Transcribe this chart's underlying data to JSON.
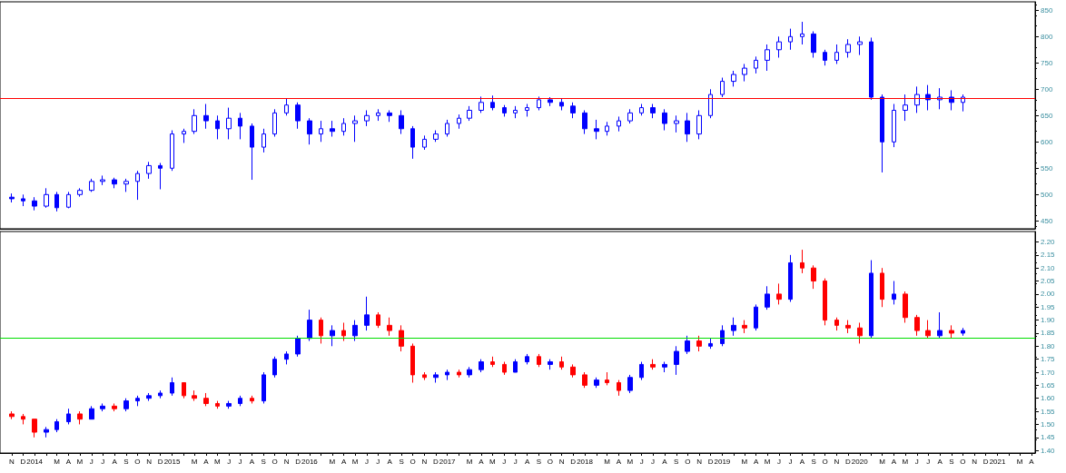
{
  "chart_data": [
    {
      "type": "candlestick",
      "color": "#0000ff",
      "xlim": [
        "2013-10-15",
        "2021-04-25"
      ],
      "ylim": [
        435,
        866
      ],
      "yticks": [
        450,
        500,
        550,
        600,
        650,
        700,
        750,
        800,
        850
      ],
      "tick_labels": "y",
      "ref_lines": [
        {
          "axis": "y",
          "value": 682,
          "color": "#ff0000"
        }
      ],
      "x": [
        "2013-11-15",
        "2013-12-15",
        "2014-01-15",
        "2014-02-15",
        "2014-03-15",
        "2014-04-15",
        "2014-05-15",
        "2014-06-15",
        "2014-07-15",
        "2014-08-15",
        "2014-09-15",
        "2014-10-15",
        "2014-11-15",
        "2014-12-15",
        "2015-01-15",
        "2015-02-15",
        "2015-03-15",
        "2015-04-15",
        "2015-05-15",
        "2015-06-15",
        "2015-07-15",
        "2015-08-15",
        "2015-09-15",
        "2015-10-15",
        "2015-11-15",
        "2015-12-15",
        "2016-01-15",
        "2016-02-15",
        "2016-03-15",
        "2016-04-15",
        "2016-05-15",
        "2016-06-15",
        "2016-07-15",
        "2016-08-15",
        "2016-09-15",
        "2016-10-15",
        "2016-11-15",
        "2016-12-15",
        "2017-01-15",
        "2017-02-15",
        "2017-03-15",
        "2017-04-15",
        "2017-05-15",
        "2017-06-15",
        "2017-07-15",
        "2017-08-15",
        "2017-09-15",
        "2017-10-15",
        "2017-11-15",
        "2017-12-15",
        "2018-01-15",
        "2018-02-15",
        "2018-03-15",
        "2018-04-15",
        "2018-05-15",
        "2018-06-15",
        "2018-07-15",
        "2018-08-15",
        "2018-09-15",
        "2018-10-15",
        "2018-11-15",
        "2018-12-15",
        "2019-01-15",
        "2019-02-15",
        "2019-03-15",
        "2019-04-15",
        "2019-05-15",
        "2019-06-15",
        "2019-07-15",
        "2019-08-15",
        "2019-09-15",
        "2019-10-15",
        "2019-11-15",
        "2019-12-15",
        "2020-01-15",
        "2020-02-15",
        "2020-03-15",
        "2020-04-15",
        "2020-05-15",
        "2020-06-15",
        "2020-07-15",
        "2020-08-15",
        "2020-09-15",
        "2020-10-15"
      ],
      "ohlc": [
        [
          495,
          502,
          485,
          492
        ],
        [
          492,
          500,
          478,
          488
        ],
        [
          488,
          495,
          470,
          478
        ],
        [
          478,
          512,
          475,
          500
        ],
        [
          500,
          505,
          468,
          475
        ],
        [
          476,
          505,
          474,
          500
        ],
        [
          500,
          512,
          496,
          508
        ],
        [
          508,
          530,
          505,
          525
        ],
        [
          525,
          536,
          518,
          528
        ],
        [
          528,
          532,
          512,
          520
        ],
        [
          520,
          530,
          505,
          525
        ],
        [
          525,
          545,
          490,
          540
        ],
        [
          540,
          562,
          530,
          555
        ],
        [
          555,
          560,
          510,
          550
        ],
        [
          550,
          622,
          545,
          615
        ],
        [
          615,
          625,
          598,
          620
        ],
        [
          620,
          662,
          615,
          650
        ],
        [
          650,
          672,
          625,
          640
        ],
        [
          640,
          650,
          605,
          625
        ],
        [
          625,
          665,
          605,
          645
        ],
        [
          645,
          655,
          605,
          630
        ],
        [
          630,
          635,
          528,
          590
        ],
        [
          590,
          625,
          580,
          615
        ],
        [
          615,
          662,
          610,
          655
        ],
        [
          655,
          683,
          650,
          670
        ],
        [
          670,
          675,
          625,
          640
        ],
        [
          640,
          645,
          595,
          615
        ],
        [
          615,
          640,
          600,
          625
        ],
        [
          625,
          640,
          610,
          620
        ],
        [
          620,
          645,
          612,
          635
        ],
        [
          635,
          650,
          600,
          640
        ],
        [
          640,
          660,
          630,
          650
        ],
        [
          650,
          662,
          640,
          655
        ],
        [
          655,
          660,
          638,
          650
        ],
        [
          650,
          660,
          615,
          625
        ],
        [
          625,
          630,
          568,
          590
        ],
        [
          590,
          612,
          585,
          605
        ],
        [
          605,
          622,
          600,
          615
        ],
        [
          615,
          642,
          610,
          635
        ],
        [
          635,
          652,
          625,
          645
        ],
        [
          645,
          668,
          640,
          660
        ],
        [
          660,
          686,
          655,
          675
        ],
        [
          675,
          688,
          660,
          665
        ],
        [
          665,
          670,
          648,
          655
        ],
        [
          655,
          668,
          645,
          660
        ],
        [
          660,
          672,
          648,
          665
        ],
        [
          665,
          686,
          660,
          680
        ],
        [
          680,
          685,
          668,
          675
        ],
        [
          675,
          682,
          660,
          668
        ],
        [
          668,
          675,
          645,
          655
        ],
        [
          655,
          660,
          615,
          625
        ],
        [
          625,
          642,
          605,
          620
        ],
        [
          620,
          638,
          612,
          630
        ],
        [
          630,
          648,
          620,
          640
        ],
        [
          640,
          662,
          635,
          655
        ],
        [
          655,
          672,
          650,
          665
        ],
        [
          665,
          672,
          645,
          655
        ],
        [
          655,
          662,
          622,
          635
        ],
        [
          635,
          650,
          618,
          640
        ],
        [
          640,
          655,
          600,
          615
        ],
        [
          615,
          660,
          605,
          650
        ],
        [
          650,
          700,
          645,
          690
        ],
        [
          690,
          722,
          685,
          715
        ],
        [
          715,
          735,
          705,
          728
        ],
        [
          728,
          748,
          715,
          740
        ],
        [
          740,
          762,
          730,
          755
        ],
        [
          755,
          785,
          735,
          775
        ],
        [
          775,
          800,
          760,
          790
        ],
        [
          790,
          815,
          775,
          800
        ],
        [
          800,
          828,
          785,
          805
        ],
        [
          805,
          810,
          760,
          770
        ],
        [
          770,
          775,
          745,
          755
        ],
        [
          755,
          785,
          748,
          770
        ],
        [
          770,
          795,
          760,
          785
        ],
        [
          785,
          800,
          765,
          790
        ],
        [
          790,
          798,
          680,
          685
        ],
        [
          685,
          690,
          542,
          600
        ],
        [
          600,
          672,
          590,
          660
        ],
        [
          660,
          690,
          640,
          670
        ],
        [
          670,
          705,
          655,
          690
        ],
        [
          690,
          708,
          660,
          680
        ],
        [
          680,
          702,
          662,
          685
        ],
        [
          685,
          698,
          660,
          675
        ],
        [
          675,
          690,
          658,
          685
        ]
      ]
    },
    {
      "type": "candlestick",
      "xlim": [
        "2013-10-15",
        "2021-04-25"
      ],
      "ylim": [
        1.39,
        2.24
      ],
      "yticks": [
        {
          "value": 1.4,
          "label": "1.40"
        },
        1.45,
        {
          "value": 1.5,
          "label": "1.50"
        },
        1.55,
        {
          "value": 1.6,
          "label": "1.60"
        },
        1.65,
        {
          "value": 1.7,
          "label": "1.70"
        },
        1.75,
        {
          "value": 1.8,
          "label": "1.80"
        },
        1.85,
        {
          "value": 1.9,
          "label": "1.90"
        },
        1.95,
        {
          "value": 2.0,
          "label": "2.00"
        },
        2.05,
        {
          "value": 2.1,
          "label": "2.10"
        },
        2.15,
        {
          "value": 2.2,
          "label": "2.20"
        }
      ],
      "xticks": [
        {
          "value": "2013-11-15",
          "label": "N"
        },
        {
          "value": "2013-12-15",
          "label": "D"
        },
        {
          "value": "2014-01-15",
          "label": "2014"
        },
        {
          "value": "2014-02-15",
          "label": null
        },
        {
          "value": "2014-03-15",
          "label": "M"
        },
        {
          "value": "2014-04-15",
          "label": "A"
        },
        {
          "value": "2014-05-15",
          "label": "M"
        },
        {
          "value": "2014-06-15",
          "label": "J"
        },
        {
          "value": "2014-07-15",
          "label": "J"
        },
        {
          "value": "2014-08-15",
          "label": "A"
        },
        {
          "value": "2014-09-15",
          "label": "S"
        },
        {
          "value": "2014-10-15",
          "label": "O"
        },
        {
          "value": "2014-11-15",
          "label": "N"
        },
        {
          "value": "2014-12-15",
          "label": "D"
        },
        {
          "value": "2015-01-15",
          "label": "2015"
        },
        {
          "value": "2015-02-15",
          "label": null
        },
        {
          "value": "2015-03-15",
          "label": "M"
        },
        {
          "value": "2015-04-15",
          "label": "A"
        },
        {
          "value": "2015-05-15",
          "label": "M"
        },
        {
          "value": "2015-06-15",
          "label": "J"
        },
        {
          "value": "2015-07-15",
          "label": "J"
        },
        {
          "value": "2015-08-15",
          "label": "A"
        },
        {
          "value": "2015-09-15",
          "label": "S"
        },
        {
          "value": "2015-10-15",
          "label": "O"
        },
        {
          "value": "2015-11-15",
          "label": "N"
        },
        {
          "value": "2015-12-15",
          "label": "D"
        },
        {
          "value": "2016-01-15",
          "label": "2016"
        },
        {
          "value": "2016-02-15",
          "label": null
        },
        {
          "value": "2016-03-15",
          "label": "M"
        },
        {
          "value": "2016-04-15",
          "label": "A"
        },
        {
          "value": "2016-05-15",
          "label": "M"
        },
        {
          "value": "2016-06-15",
          "label": "J"
        },
        {
          "value": "2016-07-15",
          "label": "J"
        },
        {
          "value": "2016-08-15",
          "label": "A"
        },
        {
          "value": "2016-09-15",
          "label": "S"
        },
        {
          "value": "2016-10-15",
          "label": "O"
        },
        {
          "value": "2016-11-15",
          "label": "N"
        },
        {
          "value": "2016-12-15",
          "label": "D"
        },
        {
          "value": "2017-01-15",
          "label": "2017"
        },
        {
          "value": "2017-02-15",
          "label": null
        },
        {
          "value": "2017-03-15",
          "label": "M"
        },
        {
          "value": "2017-04-15",
          "label": "A"
        },
        {
          "value": "2017-05-15",
          "label": "M"
        },
        {
          "value": "2017-06-15",
          "label": "J"
        },
        {
          "value": "2017-07-15",
          "label": "J"
        },
        {
          "value": "2017-08-15",
          "label": "A"
        },
        {
          "value": "2017-09-15",
          "label": "S"
        },
        {
          "value": "2017-10-15",
          "label": "O"
        },
        {
          "value": "2017-11-15",
          "label": "N"
        },
        {
          "value": "2017-12-15",
          "label": "D"
        },
        {
          "value": "2018-01-15",
          "label": "2018"
        },
        {
          "value": "2018-02-15",
          "label": null
        },
        {
          "value": "2018-03-15",
          "label": "M"
        },
        {
          "value": "2018-04-15",
          "label": "A"
        },
        {
          "value": "2018-05-15",
          "label": "M"
        },
        {
          "value": "2018-06-15",
          "label": "J"
        },
        {
          "value": "2018-07-15",
          "label": "J"
        },
        {
          "value": "2018-08-15",
          "label": "A"
        },
        {
          "value": "2018-09-15",
          "label": "S"
        },
        {
          "value": "2018-10-15",
          "label": "O"
        },
        {
          "value": "2018-11-15",
          "label": "N"
        },
        {
          "value": "2018-12-15",
          "label": "D"
        },
        {
          "value": "2019-01-15",
          "label": "2019"
        },
        {
          "value": "2019-02-15",
          "label": null
        },
        {
          "value": "2019-03-15",
          "label": "M"
        },
        {
          "value": "2019-04-15",
          "label": "A"
        },
        {
          "value": "2019-05-15",
          "label": "M"
        },
        {
          "value": "2019-06-15",
          "label": "J"
        },
        {
          "value": "2019-07-15",
          "label": "J"
        },
        {
          "value": "2019-08-15",
          "label": "A"
        },
        {
          "value": "2019-09-15",
          "label": "S"
        },
        {
          "value": "2019-10-15",
          "label": "O"
        },
        {
          "value": "2019-11-15",
          "label": "N"
        },
        {
          "value": "2019-12-15",
          "label": "D"
        },
        {
          "value": "2020-01-15",
          "label": "2020"
        },
        {
          "value": "2020-02-15",
          "label": null
        },
        {
          "value": "2020-03-15",
          "label": "M"
        },
        {
          "value": "2020-04-15",
          "label": "A"
        },
        {
          "value": "2020-05-15",
          "label": "M"
        },
        {
          "value": "2020-06-15",
          "label": "J"
        },
        {
          "value": "2020-07-15",
          "label": "J"
        },
        {
          "value": "2020-08-15",
          "label": "A"
        },
        {
          "value": "2020-09-15",
          "label": "S"
        },
        {
          "value": "2020-10-15",
          "label": "O"
        },
        {
          "value": "2020-11-15",
          "label": "N"
        },
        {
          "value": "2020-12-15",
          "label": "D"
        },
        {
          "value": "2021-01-15",
          "label": "2021"
        },
        {
          "value": "2021-02-15",
          "label": null
        },
        {
          "value": "2021-03-15",
          "label": "M"
        },
        {
          "value": "2021-04-15",
          "label": "A"
        }
      ],
      "ref_lines": [
        {
          "axis": "y",
          "value": 1.83,
          "color": "#00dd00"
        }
      ],
      "x": [
        "2013-11-15",
        "2013-12-15",
        "2014-01-15",
        "2014-02-15",
        "2014-03-15",
        "2014-04-15",
        "2014-05-15",
        "2014-06-15",
        "2014-07-15",
        "2014-08-15",
        "2014-09-15",
        "2014-10-15",
        "2014-11-15",
        "2014-12-15",
        "2015-01-15",
        "2015-02-15",
        "2015-03-15",
        "2015-04-15",
        "2015-05-15",
        "2015-06-15",
        "2015-07-15",
        "2015-08-15",
        "2015-09-15",
        "2015-10-15",
        "2015-11-15",
        "2015-12-15",
        "2016-01-15",
        "2016-02-15",
        "2016-03-15",
        "2016-04-15",
        "2016-05-15",
        "2016-06-15",
        "2016-07-15",
        "2016-08-15",
        "2016-09-15",
        "2016-10-15",
        "2016-11-15",
        "2016-12-15",
        "2017-01-15",
        "2017-02-15",
        "2017-03-15",
        "2017-04-15",
        "2017-05-15",
        "2017-06-15",
        "2017-07-15",
        "2017-08-15",
        "2017-09-15",
        "2017-10-15",
        "2017-11-15",
        "2017-12-15",
        "2018-01-15",
        "2018-02-15",
        "2018-03-15",
        "2018-04-15",
        "2018-05-15",
        "2018-06-15",
        "2018-07-15",
        "2018-08-15",
        "2018-09-15",
        "2018-10-15",
        "2018-11-15",
        "2018-12-15",
        "2019-01-15",
        "2019-02-15",
        "2019-03-15",
        "2019-04-15",
        "2019-05-15",
        "2019-06-15",
        "2019-07-15",
        "2019-08-15",
        "2019-09-15",
        "2019-10-15",
        "2019-11-15",
        "2019-12-15",
        "2020-01-15",
        "2020-02-15",
        "2020-03-15",
        "2020-04-15",
        "2020-05-15",
        "2020-06-15",
        "2020-07-15",
        "2020-08-15",
        "2020-09-15",
        "2020-10-15"
      ],
      "ohlc": [
        [
          1.54,
          1.55,
          1.52,
          1.53
        ],
        [
          1.53,
          1.54,
          1.5,
          1.52
        ],
        [
          1.52,
          1.52,
          1.45,
          1.47
        ],
        [
          1.47,
          1.49,
          1.45,
          1.48
        ],
        [
          1.48,
          1.52,
          1.47,
          1.51
        ],
        [
          1.51,
          1.56,
          1.5,
          1.54
        ],
        [
          1.54,
          1.55,
          1.5,
          1.52
        ],
        [
          1.52,
          1.57,
          1.52,
          1.56
        ],
        [
          1.56,
          1.58,
          1.55,
          1.57
        ],
        [
          1.57,
          1.58,
          1.55,
          1.56
        ],
        [
          1.56,
          1.6,
          1.55,
          1.59
        ],
        [
          1.59,
          1.61,
          1.57,
          1.6
        ],
        [
          1.6,
          1.62,
          1.59,
          1.61
        ],
        [
          1.61,
          1.63,
          1.6,
          1.62
        ],
        [
          1.62,
          1.68,
          1.61,
          1.66
        ],
        [
          1.66,
          1.66,
          1.6,
          1.61
        ],
        [
          1.61,
          1.63,
          1.59,
          1.6
        ],
        [
          1.6,
          1.62,
          1.57,
          1.58
        ],
        [
          1.58,
          1.59,
          1.56,
          1.57
        ],
        [
          1.57,
          1.59,
          1.56,
          1.58
        ],
        [
          1.58,
          1.61,
          1.57,
          1.6
        ],
        [
          1.6,
          1.61,
          1.58,
          1.59
        ],
        [
          1.59,
          1.7,
          1.58,
          1.69
        ],
        [
          1.69,
          1.76,
          1.68,
          1.75
        ],
        [
          1.75,
          1.78,
          1.73,
          1.77
        ],
        [
          1.77,
          1.84,
          1.76,
          1.83
        ],
        [
          1.83,
          1.94,
          1.82,
          1.9
        ],
        [
          1.9,
          1.91,
          1.81,
          1.84
        ],
        [
          1.84,
          1.88,
          1.8,
          1.86
        ],
        [
          1.86,
          1.89,
          1.82,
          1.84
        ],
        [
          1.84,
          1.9,
          1.82,
          1.88
        ],
        [
          1.88,
          1.99,
          1.86,
          1.92
        ],
        [
          1.92,
          1.93,
          1.87,
          1.88
        ],
        [
          1.88,
          1.91,
          1.84,
          1.86
        ],
        [
          1.86,
          1.88,
          1.78,
          1.8
        ],
        [
          1.8,
          1.81,
          1.66,
          1.69
        ],
        [
          1.69,
          1.7,
          1.67,
          1.68
        ],
        [
          1.68,
          1.7,
          1.66,
          1.69
        ],
        [
          1.69,
          1.71,
          1.67,
          1.7
        ],
        [
          1.7,
          1.71,
          1.68,
          1.69
        ],
        [
          1.69,
          1.72,
          1.68,
          1.71
        ],
        [
          1.71,
          1.75,
          1.7,
          1.74
        ],
        [
          1.74,
          1.76,
          1.72,
          1.73
        ],
        [
          1.73,
          1.74,
          1.69,
          1.7
        ],
        [
          1.7,
          1.75,
          1.7,
          1.74
        ],
        [
          1.74,
          1.77,
          1.73,
          1.76
        ],
        [
          1.76,
          1.77,
          1.72,
          1.73
        ],
        [
          1.73,
          1.75,
          1.71,
          1.74
        ],
        [
          1.74,
          1.76,
          1.71,
          1.72
        ],
        [
          1.72,
          1.73,
          1.68,
          1.69
        ],
        [
          1.69,
          1.7,
          1.64,
          1.65
        ],
        [
          1.65,
          1.68,
          1.64,
          1.67
        ],
        [
          1.67,
          1.7,
          1.65,
          1.66
        ],
        [
          1.66,
          1.67,
          1.61,
          1.63
        ],
        [
          1.63,
          1.69,
          1.62,
          1.68
        ],
        [
          1.68,
          1.74,
          1.67,
          1.73
        ],
        [
          1.73,
          1.75,
          1.71,
          1.72
        ],
        [
          1.72,
          1.74,
          1.7,
          1.73
        ],
        [
          1.73,
          1.8,
          1.69,
          1.78
        ],
        [
          1.78,
          1.84,
          1.77,
          1.82
        ],
        [
          1.82,
          1.84,
          1.78,
          1.8
        ],
        [
          1.8,
          1.83,
          1.79,
          1.81
        ],
        [
          1.81,
          1.88,
          1.8,
          1.86
        ],
        [
          1.86,
          1.91,
          1.84,
          1.88
        ],
        [
          1.88,
          1.9,
          1.85,
          1.87
        ],
        [
          1.87,
          1.96,
          1.86,
          1.95
        ],
        [
          1.95,
          2.03,
          1.94,
          2.0
        ],
        [
          2.0,
          2.04,
          1.96,
          1.98
        ],
        [
          1.98,
          2.15,
          1.97,
          2.12
        ],
        [
          2.12,
          2.17,
          2.08,
          2.1
        ],
        [
          2.1,
          2.11,
          2.02,
          2.05
        ],
        [
          2.05,
          2.06,
          1.88,
          1.9
        ],
        [
          1.9,
          1.91,
          1.86,
          1.88
        ],
        [
          1.88,
          1.9,
          1.85,
          1.87
        ],
        [
          1.87,
          1.89,
          1.81,
          1.84
        ],
        [
          1.84,
          2.13,
          1.83,
          2.08
        ],
        [
          2.08,
          2.1,
          1.95,
          1.98
        ],
        [
          1.98,
          2.05,
          1.96,
          2.0
        ],
        [
          2.0,
          2.01,
          1.89,
          1.91
        ],
        [
          1.91,
          1.92,
          1.84,
          1.86
        ],
        [
          1.86,
          1.9,
          1.83,
          1.84
        ],
        [
          1.84,
          1.93,
          1.83,
          1.86
        ],
        [
          1.86,
          1.88,
          1.83,
          1.85
        ],
        [
          1.85,
          1.87,
          1.84,
          1.86
        ]
      ],
      "colors": [
        "#ff0000",
        "#ff0000",
        "#ff0000",
        "#0000ff",
        "#0000ff",
        "#0000ff",
        "#ff0000",
        "#0000ff",
        "#0000ff",
        "#ff0000",
        "#0000ff",
        "#0000ff",
        "#0000ff",
        "#0000ff",
        "#0000ff",
        "#ff0000",
        "#ff0000",
        "#ff0000",
        "#ff0000",
        "#0000ff",
        "#0000ff",
        "#ff0000",
        "#0000ff",
        "#0000ff",
        "#0000ff",
        "#0000ff",
        "#0000ff",
        "#ff0000",
        "#0000ff",
        "#ff0000",
        "#0000ff",
        "#0000ff",
        "#ff0000",
        "#ff0000",
        "#ff0000",
        "#ff0000",
        "#ff0000",
        "#0000ff",
        "#0000ff",
        "#ff0000",
        "#0000ff",
        "#0000ff",
        "#ff0000",
        "#ff0000",
        "#0000ff",
        "#0000ff",
        "#ff0000",
        "#0000ff",
        "#ff0000",
        "#ff0000",
        "#ff0000",
        "#0000ff",
        "#ff0000",
        "#ff0000",
        "#0000ff",
        "#0000ff",
        "#ff0000",
        "#0000ff",
        "#0000ff",
        "#0000ff",
        "#ff0000",
        "#0000ff",
        "#0000ff",
        "#0000ff",
        "#ff0000",
        "#0000ff",
        "#0000ff",
        "#ff0000",
        "#0000ff",
        "#ff0000",
        "#ff0000",
        "#ff0000",
        "#ff0000",
        "#ff0000",
        "#ff0000",
        "#0000ff",
        "#ff0000",
        "#0000ff",
        "#ff0000",
        "#ff0000",
        "#ff0000",
        "#0000ff",
        "#ff0000",
        "#0000ff"
      ]
    }
  ]
}
